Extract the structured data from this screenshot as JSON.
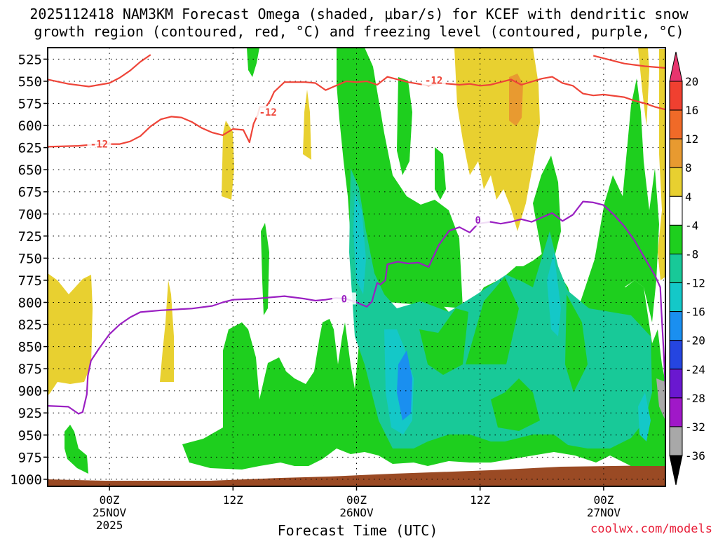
{
  "chart_data": {
    "type": "heatmap",
    "title_line1": "2025112418 NAM3KM Forecast Omega (shaded, μbar/s) for KCEF with dendritic snow",
    "title_line2": "growth region (contoured, red, °C) and freezing level (contoured, purple, °C)",
    "xlabel": "Forecast Time (UTC)",
    "credit": "coolwx.com/models",
    "x_range_hours": [
      -6,
      54
    ],
    "y_range_hPa": [
      512,
      1008
    ],
    "y_ticks": [
      525,
      550,
      575,
      600,
      625,
      650,
      675,
      700,
      725,
      750,
      775,
      800,
      825,
      850,
      875,
      900,
      925,
      950,
      975,
      1000
    ],
    "x_ticks": [
      {
        "hour": 0,
        "lines": [
          "00Z",
          "25NOV",
          "2025"
        ]
      },
      {
        "hour": 12,
        "lines": [
          "12Z"
        ]
      },
      {
        "hour": 24,
        "lines": [
          "00Z",
          "26NOV"
        ]
      },
      {
        "hour": 36,
        "lines": [
          "12Z"
        ]
      },
      {
        "hour": 48,
        "lines": [
          "00Z",
          "27NOV"
        ]
      }
    ],
    "colorbar": {
      "labels": [
        20,
        16,
        12,
        8,
        4,
        -4,
        -8,
        -12,
        -16,
        -20,
        -24,
        -28,
        -32,
        -36
      ],
      "colors": [
        "#e8356e",
        "#f04030",
        "#f06a28",
        "#e89a30",
        "#e8d030",
        "#ffffff",
        "#1ecf1e",
        "#18c998",
        "#14c8c8",
        "#1a8ff0",
        "#2545e0",
        "#6a18d0",
        "#a018c8",
        "#a8a8a8",
        "#000000"
      ]
    },
    "contour_labels": {
      "dgz_label": "-12",
      "freezing_label": "0"
    },
    "dgz_contours": [
      [
        [
          -6,
          548
        ],
        [
          -4,
          553
        ],
        [
          -2,
          556
        ],
        [
          0,
          552
        ],
        [
          1,
          546
        ],
        [
          2,
          538
        ],
        [
          3,
          528
        ],
        [
          4,
          520
        ]
      ],
      [
        [
          -6,
          624
        ],
        [
          -3,
          623
        ],
        [
          -1,
          621
        ],
        [
          1,
          621
        ],
        [
          2,
          618
        ],
        [
          3,
          612
        ],
        [
          4,
          601
        ],
        [
          5,
          593
        ],
        [
          6,
          590
        ],
        [
          7,
          591
        ],
        [
          8,
          596
        ],
        [
          9,
          603
        ],
        [
          10,
          608
        ],
        [
          11,
          611
        ],
        [
          12,
          604
        ],
        [
          13,
          605
        ],
        [
          13.6,
          619
        ],
        [
          14,
          598
        ],
        [
          14.4,
          588
        ],
        [
          14.6,
          579
        ],
        [
          15.2,
          579
        ],
        [
          15.6,
          572
        ],
        [
          16,
          562
        ],
        [
          17,
          551
        ],
        [
          19,
          551
        ],
        [
          20,
          552
        ],
        [
          21,
          560
        ],
        [
          22,
          555
        ],
        [
          23,
          550
        ],
        [
          24,
          551
        ],
        [
          25,
          550
        ],
        [
          26,
          554
        ],
        [
          27,
          545
        ],
        [
          28,
          548
        ],
        [
          29,
          551
        ],
        [
          30,
          553
        ],
        [
          31,
          555
        ],
        [
          32,
          552
        ],
        [
          33,
          553
        ],
        [
          34,
          554
        ],
        [
          35,
          553
        ],
        [
          36,
          555
        ],
        [
          37,
          554
        ],
        [
          38,
          551
        ],
        [
          39,
          548
        ],
        [
          40,
          554
        ],
        [
          42,
          547
        ],
        [
          43,
          545
        ],
        [
          44,
          552
        ],
        [
          45,
          555
        ],
        [
          46,
          564
        ],
        [
          47,
          566
        ],
        [
          48,
          565
        ],
        [
          50,
          568
        ],
        [
          51,
          572
        ],
        [
          52,
          575
        ],
        [
          53,
          579
        ],
        [
          54,
          582
        ]
      ],
      [
        [
          47,
          521
        ],
        [
          50,
          530
        ],
        [
          52,
          533
        ],
        [
          54,
          535
        ]
      ]
    ],
    "freezing_contours": [
      [
        [
          -6,
          917
        ],
        [
          -4,
          918
        ],
        [
          -3,
          926
        ],
        [
          -2.6,
          924
        ],
        [
          -2.2,
          904
        ],
        [
          -2.1,
          883
        ],
        [
          -1.8,
          866
        ],
        [
          -1,
          852
        ],
        [
          0,
          836
        ],
        [
          1,
          825
        ],
        [
          2,
          817
        ],
        [
          3,
          811
        ],
        [
          5,
          809
        ],
        [
          8,
          807
        ],
        [
          10,
          804
        ],
        [
          11,
          800
        ],
        [
          12,
          797
        ],
        [
          14,
          796
        ],
        [
          15,
          795
        ],
        [
          17,
          793
        ],
        [
          19,
          796
        ],
        [
          20,
          798
        ],
        [
          21,
          797
        ],
        [
          22,
          795
        ],
        [
          23,
          796
        ],
        [
          24,
          800
        ],
        [
          25,
          805
        ],
        [
          25.5,
          799
        ],
        [
          26,
          778
        ],
        [
          26.3,
          780
        ],
        [
          26.8,
          775
        ],
        [
          27,
          757
        ],
        [
          28,
          754
        ],
        [
          29,
          756
        ],
        [
          30,
          755
        ],
        [
          31,
          760
        ],
        [
          32,
          735
        ],
        [
          33,
          719
        ],
        [
          34,
          715
        ],
        [
          35,
          721
        ],
        [
          35.8,
          711
        ],
        [
          37,
          709
        ],
        [
          38,
          711
        ],
        [
          39,
          709
        ],
        [
          40,
          706
        ],
        [
          41,
          709
        ],
        [
          42,
          704
        ],
        [
          43,
          699
        ],
        [
          44,
          708
        ],
        [
          45,
          701
        ],
        [
          46,
          686
        ],
        [
          47,
          687
        ],
        [
          48,
          690
        ],
        [
          49,
          701
        ],
        [
          50,
          714
        ],
        [
          51,
          730
        ],
        [
          52,
          750
        ],
        [
          53,
          770
        ],
        [
          53.5,
          783
        ],
        [
          53.6,
          807
        ],
        [
          53.8,
          850
        ],
        [
          54,
          895
        ]
      ]
    ]
  }
}
